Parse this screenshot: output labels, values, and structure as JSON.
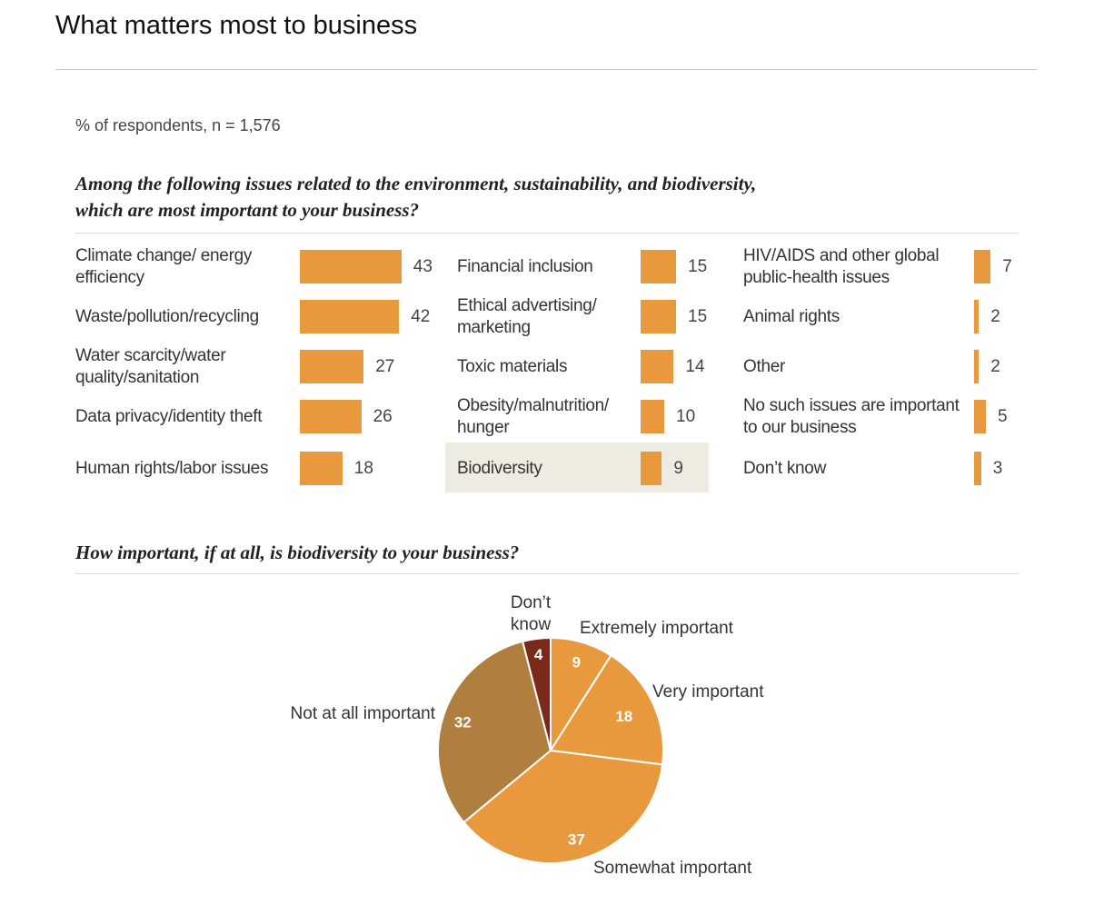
{
  "header": {
    "title": "What matters most to business"
  },
  "chart_data": [
    {
      "type": "bar",
      "subtitle": "% of respondents, n = 1,576",
      "title": "Among the following issues related to the environment, sustainability, and biodiversity, which are most important to your business?",
      "categories": [
        "Climate change/ energy efficiency",
        "Waste/pollution/recycling",
        "Water scarcity/water quality/sanitation",
        "Data privacy/identity theft",
        "Human rights/labor issues",
        "Financial inclusion",
        "Ethical advertising/ marketing",
        "Toxic materials",
        "Obesity/malnutrition/ hunger",
        "Biodiversity",
        "HIV/AIDS and other global public-health issues",
        "Animal rights",
        "Other",
        "No such issues are important to our business",
        "Don’t know"
      ],
      "values": [
        43,
        42,
        27,
        26,
        18,
        15,
        15,
        14,
        10,
        9,
        7,
        2,
        2,
        5,
        3
      ],
      "highlight": "Biodiversity",
      "color": "#e8993e",
      "highlight_color": "#eeebe0"
    },
    {
      "type": "pie",
      "title": "How important, if at all, is biodiversity to your business?",
      "categories": [
        "Extremely important",
        "Very important",
        "Somewhat important",
        "Not at all important",
        "Don’t know"
      ],
      "values": [
        9,
        18,
        37,
        32,
        4
      ],
      "colors": [
        "#e8993e",
        "#e8993e",
        "#e8993e",
        "#b07f40",
        "#7a2a1a"
      ]
    }
  ]
}
